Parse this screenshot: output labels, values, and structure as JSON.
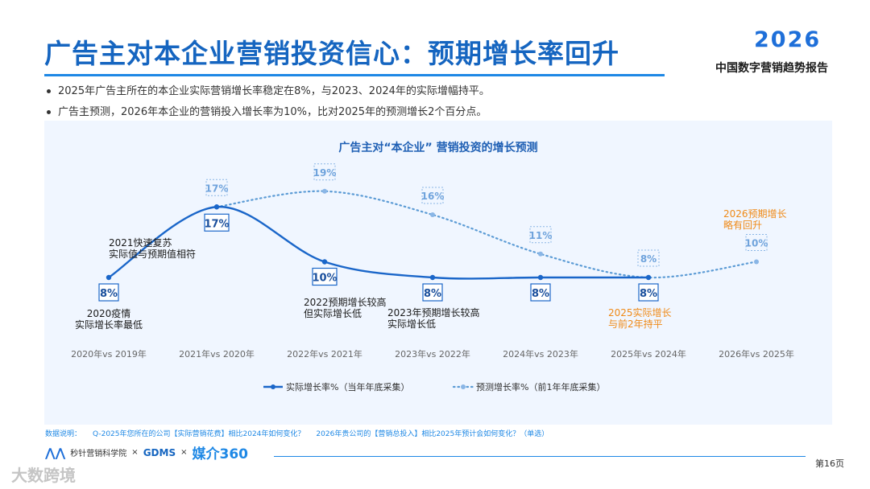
{
  "header": {
    "title": "广告主对本企业营销投资信心：预期增长率回升",
    "year_badge": "2026",
    "report_name": "中国数字营销趋势报告"
  },
  "bullets": [
    "2025年广告主所在的本企业实际营销增长率稳定在8%，与2023、2024年的实际增幅持平。",
    "广告主预测，2026年本企业的营销投入增长率为10%，比对2025年的预测增长2个百分点。"
  ],
  "chart_data": {
    "type": "line",
    "title": "广告主对“本企业” 营销投资的增长预测",
    "categories": [
      "2020年vs 2019年",
      "2021年vs 2020年",
      "2022年vs 2021年",
      "2023年vs 2022年",
      "2024年vs 2023年",
      "2025年vs 2024年",
      "2026年vs 2025年"
    ],
    "series": [
      {
        "name": "实际增长率%（当年年底采集）",
        "style": "solid",
        "color": "#1a66c9",
        "values": [
          8,
          17,
          10,
          8,
          8,
          8,
          null
        ],
        "labels": [
          "8%",
          "17%",
          "10%",
          "8%",
          "8%",
          "8%",
          null
        ]
      },
      {
        "name": "预测增长率%（前1年年底采集）",
        "style": "dotted",
        "color": "#5b9bd5",
        "values": [
          null,
          17,
          19,
          16,
          11,
          8,
          10
        ],
        "labels": [
          null,
          "17%",
          "19%",
          "16%",
          "11%",
          "8%",
          "10%"
        ]
      }
    ],
    "annotations": [
      {
        "category": 0,
        "lines": [
          "2020疫情",
          "实际增长率最低"
        ],
        "color": "#1a1a1a"
      },
      {
        "category": 1,
        "lines": [
          "2021快速复苏",
          "实际值与预期值相符"
        ],
        "color": "#1a1a1a"
      },
      {
        "category": 2,
        "lines": [
          "2022预期增长较高",
          "但实际增长低"
        ],
        "color": "#1a1a1a"
      },
      {
        "category": 3,
        "lines": [
          "2023年预期增长较高",
          "实际增长低"
        ],
        "color": "#1a1a1a"
      },
      {
        "category": 5,
        "lines": [
          "2025实际增长",
          "与前2年持平"
        ],
        "color": "#ef8a17"
      },
      {
        "category": 6,
        "lines": [
          "2026预期增长",
          "略有回升"
        ],
        "color": "#ef8a17"
      }
    ],
    "ylim": [
      0,
      22
    ],
    "legend_position": "bottom"
  },
  "note": {
    "prefix": "数据说明：",
    "q1": "Q-2025年您所在的公司【实际营销花费】相比2024年如何变化？",
    "q2": "2026年贵公司的【营销总投入】相比2025年预计会如何变化？（单选）"
  },
  "footer": {
    "logo1": "秒针营销科学院",
    "sep": "×",
    "logo2": "GDMS",
    "logo3": "媒介360",
    "page": "第16页",
    "watermark": "大数跨境"
  }
}
